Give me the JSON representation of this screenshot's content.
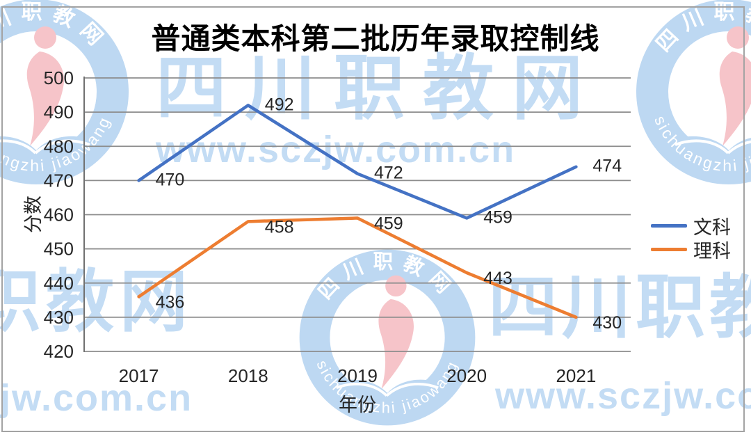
{
  "chart_data": {
    "type": "line",
    "title": "普通类本科第二批历年录取控制线",
    "xlabel": "年份",
    "ylabel": "分数",
    "categories": [
      "2017",
      "2018",
      "2019",
      "2020",
      "2021"
    ],
    "series": [
      {
        "name": "文科",
        "color": "#4472C4",
        "values": [
          470,
          492,
          472,
          459,
          474
        ]
      },
      {
        "name": "理科",
        "color": "#ED7D31",
        "values": [
          436,
          458,
          459,
          443,
          430
        ]
      }
    ],
    "ylim": [
      420,
      500
    ],
    "ytick_step": 10,
    "grid": true,
    "legend_position": "right",
    "gridline_color": "#8d8d8d",
    "axis_color": "#707070",
    "label_color": "#262626"
  },
  "watermark": {
    "site_name": "四川职教网",
    "site_name_partial_left": "职教网",
    "site_url": "www.sczjw.com.cn",
    "site_url_partial_left": "jw.com.cn",
    "logo_arc_top": "四川职教网",
    "logo_arc_bottom": "sichuangzhi jiaowang",
    "colors": {
      "light_blue": "#c3dcf4",
      "ring_blue": "#bdd8f2",
      "pink": "#f6c4c9"
    }
  }
}
